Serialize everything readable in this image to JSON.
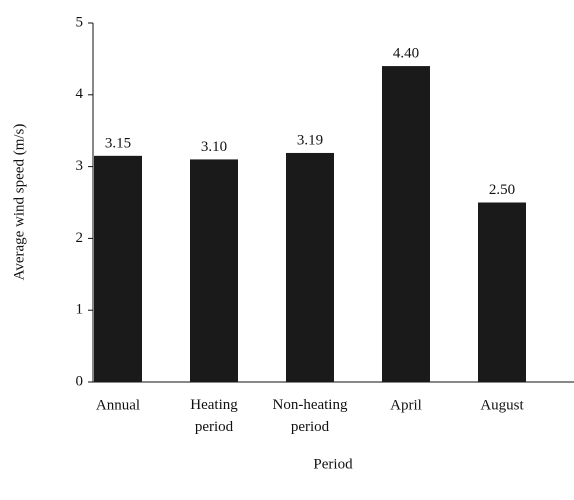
{
  "chart_data": {
    "type": "bar",
    "categories": [
      "Annual",
      "Heating period",
      "Non-heating period",
      "April",
      "August"
    ],
    "values": [
      3.15,
      3.1,
      3.19,
      4.4,
      2.5
    ],
    "value_labels": [
      "3.15",
      "3.10",
      "3.19",
      "4.40",
      "2.50"
    ],
    "color": "#1a1a1a",
    "x_label": "Period",
    "y_label": "Average wind speed (m/s)",
    "ylim": [
      0,
      5
    ],
    "yticks": [
      0,
      1,
      2,
      3,
      4,
      5
    ],
    "grid": false
  }
}
